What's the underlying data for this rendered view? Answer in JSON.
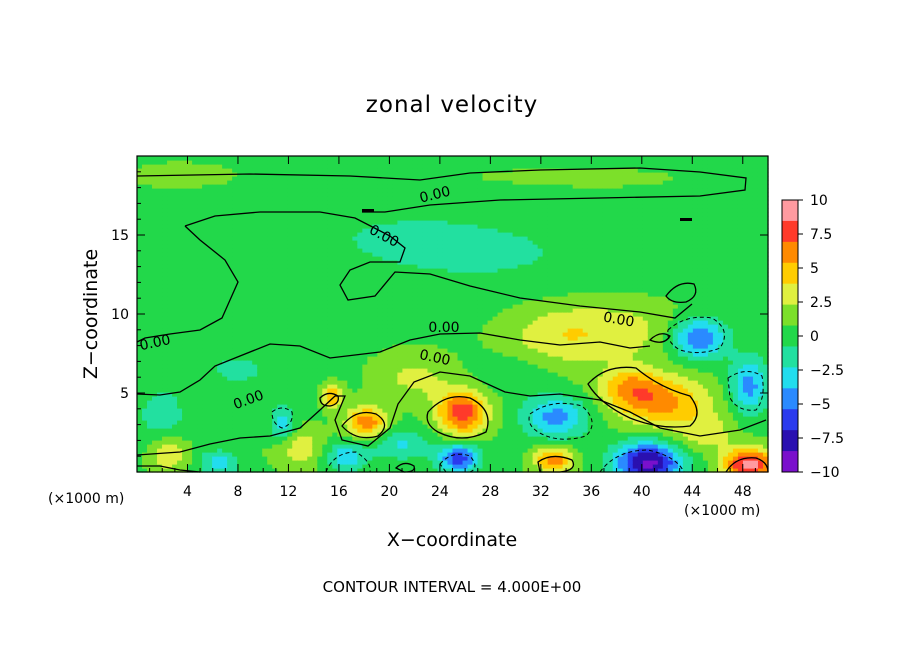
{
  "chart_data": {
    "type": "heatmap",
    "title": "zonal velocity",
    "xlabel": "X−coordinate",
    "ylabel": "Z−coordinate",
    "x_unit_label": "(×1000 m)",
    "y_unit_label": "(×1000 m)",
    "xlim": [
      0,
      50
    ],
    "ylim": [
      0,
      20
    ],
    "x_ticks": [
      4,
      8,
      12,
      16,
      20,
      24,
      28,
      32,
      36,
      40,
      44,
      48
    ],
    "x_tick_labels": [
      "4",
      "8",
      "12",
      "16",
      "20",
      "24",
      "28",
      "32",
      "36",
      "40",
      "44",
      "48"
    ],
    "y_ticks": [
      5,
      10,
      15
    ],
    "y_tick_labels": [
      "5",
      "10",
      "15"
    ],
    "contour_interval_text": "CONTOUR INTERVAL = 4.000E+00",
    "contour_label": "0.00",
    "colorbar": {
      "range": [
        -10,
        10
      ],
      "ticks": [
        10,
        7.5,
        5,
        2.5,
        0,
        -2.5,
        -5,
        -7.5,
        -10
      ],
      "tick_labels": [
        "10",
        "7.5",
        "5",
        "2.5",
        "0",
        "−2.5",
        "−5",
        "−7.5",
        "−10"
      ],
      "colors": [
        "#ff9aa0",
        "#ff3a2a",
        "#ff8a00",
        "#ffcc00",
        "#e0f040",
        "#7ce02a",
        "#22d84a",
        "#22e0a0",
        "#22ddee",
        "#2a8aff",
        "#2a3aee",
        "#2a10b0",
        "#7a10cc"
      ]
    },
    "field": {
      "background": 0.5,
      "blobs": [
        {
          "x": 3.5,
          "z": 18.8,
          "v": 0.8,
          "rx": 4,
          "rz": 0.8
        },
        {
          "x": 28,
          "z": 18.5,
          "v": 0.6,
          "rx": 20,
          "rz": 1.2
        },
        {
          "x": 20,
          "z": 15,
          "v": -1.2,
          "rx": 14,
          "rz": 3.5
        },
        {
          "x": 30,
          "z": 13.5,
          "v": -0.8,
          "rx": 10,
          "rz": 2.5
        },
        {
          "x": 45,
          "z": 14,
          "v": -0.6,
          "rx": 6,
          "rz": 3
        },
        {
          "x": 38,
          "z": 9,
          "v": 2.5,
          "rx": 6,
          "rz": 2
        },
        {
          "x": 33,
          "z": 8.5,
          "v": 2.0,
          "rx": 4,
          "rz": 2
        },
        {
          "x": 44.5,
          "z": 8.5,
          "v": -6.5,
          "rx": 2.2,
          "rz": 1.3
        },
        {
          "x": 48.5,
          "z": 5.5,
          "v": -5.0,
          "rx": 1.5,
          "rz": 1.8
        },
        {
          "x": 41.5,
          "z": 4.5,
          "v": 5.5,
          "rx": 3.8,
          "rz": 1.6
        },
        {
          "x": 39,
          "z": 5.5,
          "v": 3.5,
          "rx": 2.2,
          "rz": 1.2
        },
        {
          "x": 25.8,
          "z": 3.8,
          "v": 7.5,
          "rx": 2.0,
          "rz": 1.4
        },
        {
          "x": 18.2,
          "z": 3.2,
          "v": 6.0,
          "rx": 1.6,
          "rz": 1.0
        },
        {
          "x": 15.5,
          "z": 4.8,
          "v": 5.0,
          "rx": 0.8,
          "rz": 0.7
        },
        {
          "x": 33.2,
          "z": 3.5,
          "v": -5.0,
          "rx": 2.6,
          "rz": 1.3
        },
        {
          "x": 11.5,
          "z": 3.0,
          "v": -3.5,
          "rx": 1.0,
          "rz": 1.2
        },
        {
          "x": 2.0,
          "z": 3.5,
          "v": -2.2,
          "rx": 2.0,
          "rz": 2.0
        },
        {
          "x": 21,
          "z": 1.8,
          "v": -3.0,
          "rx": 2.2,
          "rz": 1.0
        },
        {
          "x": 25.5,
          "z": 0.9,
          "v": -7.0,
          "rx": 1.6,
          "rz": 0.9
        },
        {
          "x": 16.5,
          "z": 1.0,
          "v": -4.0,
          "rx": 1.8,
          "rz": 0.9
        },
        {
          "x": 6.5,
          "z": 0.6,
          "v": -3.5,
          "rx": 1.6,
          "rz": 0.8
        },
        {
          "x": 40.5,
          "z": 0.6,
          "v": -9.5,
          "rx": 2.6,
          "rz": 1.3
        },
        {
          "x": 48.5,
          "z": 0.5,
          "v": 9.0,
          "rx": 2.0,
          "rz": 1.0
        },
        {
          "x": 33,
          "z": 0.8,
          "v": 6.0,
          "rx": 1.5,
          "rz": 0.8
        },
        {
          "x": 8,
          "z": 6.5,
          "v": -1.5,
          "rx": 4,
          "rz": 1.5
        },
        {
          "x": 30,
          "z": 6.3,
          "v": -1.2,
          "rx": 3,
          "rz": 1.2
        },
        {
          "x": 22,
          "z": 6,
          "v": 2.2,
          "rx": 3,
          "rz": 1.5
        },
        {
          "x": 2.5,
          "z": 1.2,
          "v": 3.5,
          "rx": 1.5,
          "rz": 1.2
        },
        {
          "x": 13,
          "z": 1.5,
          "v": 3.0,
          "rx": 2,
          "rz": 1.2
        },
        {
          "x": 45,
          "z": 2.5,
          "v": 2.5,
          "rx": 2.5,
          "rz": 1.2
        }
      ]
    }
  }
}
